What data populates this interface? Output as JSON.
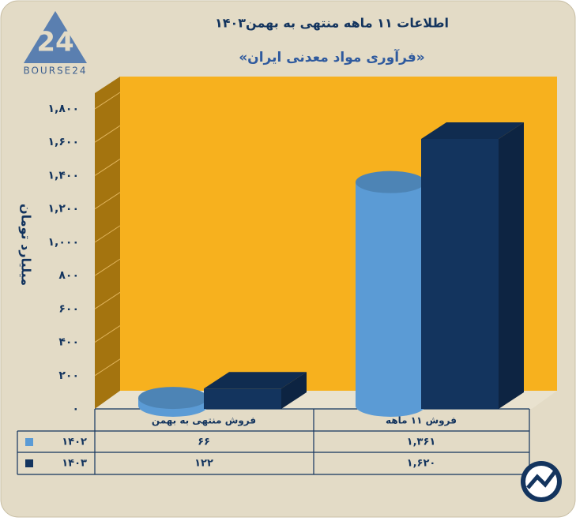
{
  "chart_data": {
    "type": "bar",
    "title": "اطلاعات ۱۱ ماهه منتهی به بهمن۱۴۰۳",
    "subtitle": "«فرآوری مواد معدنی ایران»",
    "y_label": "میلیارد تومان",
    "logo_text": "BOURSE24",
    "categories": [
      "فروش منتهی به  بهمن",
      "فروش ۱۱ ماهه"
    ],
    "series": [
      {
        "name": "۱۴۰۲",
        "color": "#5b9bd5",
        "values": [
          66,
          1361
        ],
        "value_labels": [
          "۶۶",
          "۱,۳۶۱"
        ]
      },
      {
        "name": "۱۴۰۳",
        "color": "#13345e",
        "values": [
          122,
          1620
        ],
        "value_labels": [
          "۱۲۲",
          "۱,۶۲۰"
        ]
      }
    ],
    "ylim": [
      0,
      1800
    ],
    "yticks": [
      {
        "value": 0,
        "label": "۰"
      },
      {
        "value": 200,
        "label": "۲۰۰"
      },
      {
        "value": 400,
        "label": "۴۰۰"
      },
      {
        "value": 600,
        "label": "۶۰۰"
      },
      {
        "value": 800,
        "label": "۸۰۰"
      },
      {
        "value": 1000,
        "label": "۱,۰۰۰"
      },
      {
        "value": 1200,
        "label": "۱,۲۰۰"
      },
      {
        "value": 1400,
        "label": "۱,۴۰۰"
      },
      {
        "value": 1600,
        "label": "۱,۶۰۰"
      },
      {
        "value": 1800,
        "label": "۱,۸۰۰"
      }
    ],
    "grid": true
  }
}
